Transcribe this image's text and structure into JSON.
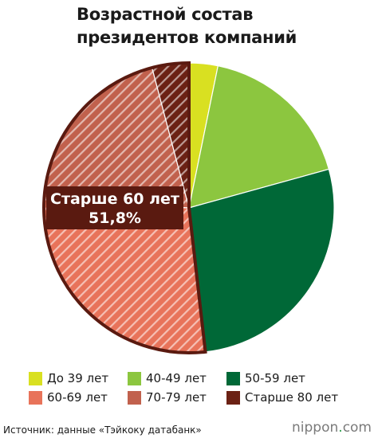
{
  "title_lines": [
    "Возрастной состав",
    "президентов компаний"
  ],
  "chart_data": {
    "type": "pie",
    "title": "Возрастной состав президентов компаний",
    "slices": [
      {
        "name": "До 39 лет",
        "value": 3.2,
        "color": "#d9e021",
        "pattern": "solid"
      },
      {
        "name": "40-49 лет",
        "value": 17.5,
        "color": "#8cc63f",
        "pattern": "solid"
      },
      {
        "name": "50-59 лет",
        "value": 27.5,
        "color": "#006837",
        "pattern": "solid"
      },
      {
        "name": "60-69 лет",
        "value": 27.7,
        "color": "#e8735a",
        "pattern": "hatch"
      },
      {
        "name": "70-79 лет",
        "value": 20.0,
        "color": "#c1614d",
        "pattern": "hatch"
      },
      {
        "name": "Старше 80 лет",
        "value": 4.1,
        "color": "#6b2114",
        "pattern": "hatch"
      }
    ],
    "annotation": {
      "label": "Старше 60 лет",
      "value": "51,8%"
    },
    "legend_position": "bottom"
  },
  "legend": [
    {
      "label": "До 39 лет",
      "color": "#d9e021"
    },
    {
      "label": "40-49 лет",
      "color": "#8cc63f"
    },
    {
      "label": "50-59 лет",
      "color": "#006837"
    },
    {
      "label": "60-69 лет",
      "color": "#e8735a"
    },
    {
      "label": "70-79 лет",
      "color": "#c1614d"
    },
    {
      "label": "Старше 80 лет",
      "color": "#6b2114"
    }
  ],
  "footer": {
    "source": "Источник: данные «Тэйкоку датабанк»",
    "brand_name": "nippon",
    "brand_dot": ".",
    "brand_tld": "com"
  }
}
